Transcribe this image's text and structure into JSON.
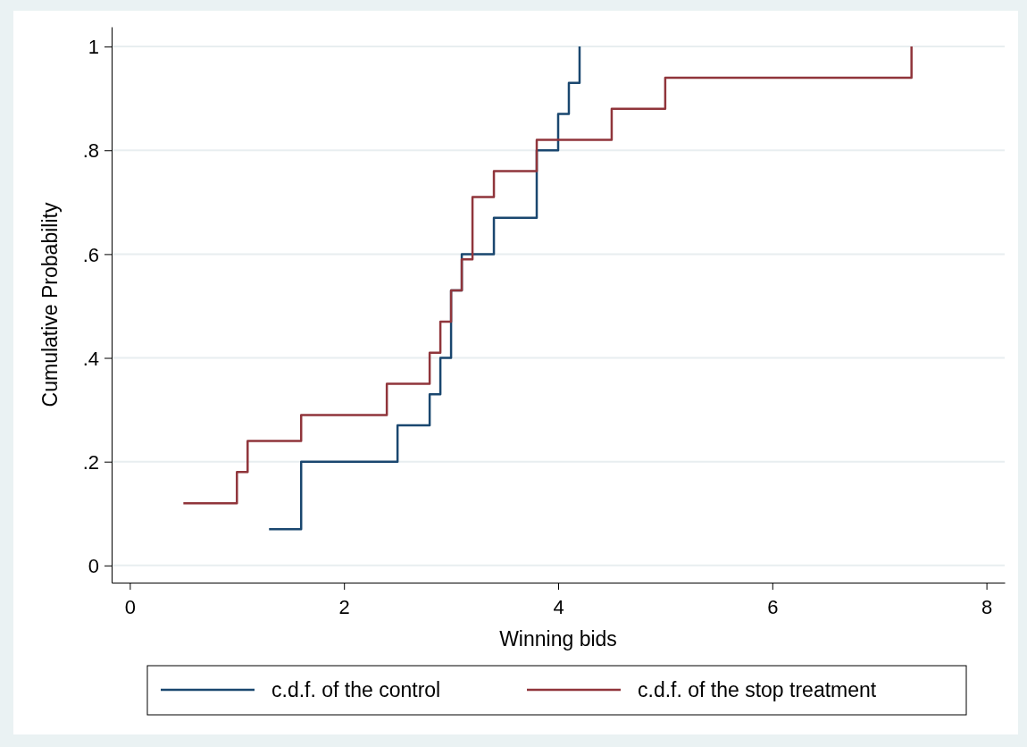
{
  "chart_data": {
    "type": "step",
    "xlabel": "Winning bids",
    "ylabel": "Cumulative Probability",
    "xlim": [
      -0.17,
      8.17
    ],
    "xticks": [
      0,
      2,
      4,
      6,
      8
    ],
    "ylim": [
      -0.033,
      1.038
    ],
    "yticks": [
      0,
      {
        "value": 0.2,
        "label": ".2"
      },
      {
        "value": 0.4,
        "label": ".4"
      },
      {
        "value": 0.6,
        "label": ".6"
      },
      {
        "value": 0.8,
        "label": ".8"
      },
      1
    ],
    "grid": "y",
    "legend": "bottom",
    "line_style": "solid",
    "marker": "none",
    "series": [
      {
        "name": "c.d.f. of the control",
        "color": "#1a476f",
        "x": [
          1.3,
          1.6,
          2.5,
          2.8,
          2.9,
          3.0,
          3.1,
          3.4,
          3.8,
          4.0,
          4.1,
          4.2
        ],
        "values": [
          0.07,
          0.2,
          0.27,
          0.33,
          0.4,
          0.53,
          0.6,
          0.67,
          0.8,
          0.87,
          0.93,
          1
        ]
      },
      {
        "name": "c.d.f. of the stop treatment",
        "color": "#90353b",
        "x": [
          0.5,
          1.0,
          1.1,
          1.6,
          2.4,
          2.8,
          2.9,
          3.0,
          3.1,
          3.2,
          3.4,
          3.8,
          4.5,
          5.0,
          7.3
        ],
        "values": [
          0.12,
          0.18,
          0.24,
          0.29,
          0.35,
          0.41,
          0.47,
          0.53,
          0.59,
          0.71,
          0.76,
          0.82,
          0.88,
          0.94,
          1
        ]
      }
    ]
  }
}
